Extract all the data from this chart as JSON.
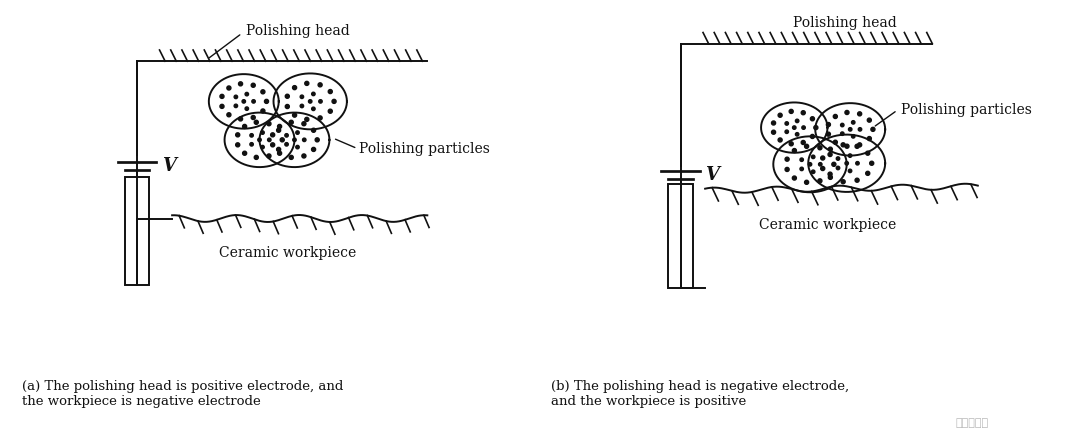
{
  "bg_color": "#ffffff",
  "line_color": "#111111",
  "label_a_title": "Polishing head",
  "label_a_particles": "Polishing particles",
  "label_a_workpiece": "Ceramic workpiece",
  "label_a_caption": "(a) The polishing head is positive electrode, and\nthe workpiece is negative electrode",
  "label_b_title": "Polishing head",
  "label_b_particles": "Polishing particles",
  "label_b_workpiece": "Ceramic workpiece",
  "label_b_caption": "(b) The polishing head is negative electrode,\nand the workpiece is positive",
  "watermark": "艾邦陶瓷展",
  "font_size_label": 10,
  "font_size_caption": 9.5
}
